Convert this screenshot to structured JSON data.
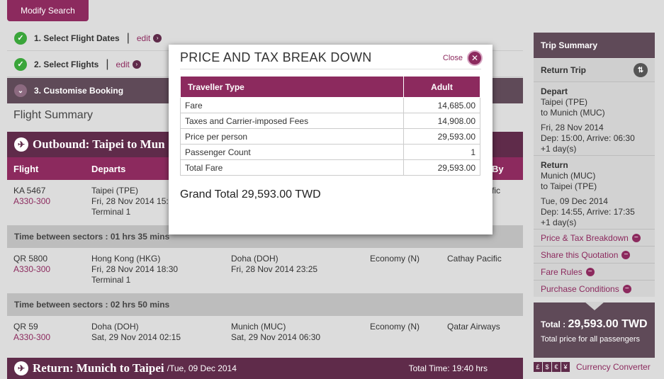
{
  "modify_search": "Modify Search",
  "steps": [
    {
      "label": "1. Select Flight Dates",
      "edit": "edit"
    },
    {
      "label": "2. Select Flights",
      "edit": "edit"
    },
    {
      "label": "3. Customise Booking"
    }
  ],
  "flight_summary_title": "Flight Summary",
  "outbound": {
    "title": "Outbound: Taipei  to Mun",
    "columns": {
      "flight": "Flight",
      "departs": "Departs",
      "by": "By"
    },
    "segments": [
      {
        "flight": "KA 5467",
        "aircraft": "A330-300",
        "dep_city": "Taipei (TPE)",
        "dep_time": "Fri, 28 Nov 2014 15:",
        "terminal": "Terminal 1",
        "arr_city": "",
        "arr_time": "",
        "cabin": "",
        "operator": "fic"
      },
      {
        "flight": "QR 5800",
        "aircraft": "A330-300",
        "dep_city": "Hong Kong (HKG)",
        "dep_time": "Fri, 28 Nov 2014 18:30",
        "terminal": "Terminal 1",
        "arr_city": "Doha (DOH)",
        "arr_time": "Fri, 28 Nov 2014 23:25",
        "cabin": "Economy (N)",
        "operator": "Cathay Pacific"
      },
      {
        "flight": "QR 59",
        "aircraft": "A330-300",
        "dep_city": "Doha (DOH)",
        "dep_time": "Sat, 29 Nov 2014 02:15",
        "terminal": "",
        "arr_city": "Munich (MUC)",
        "arr_time": "Sat, 29 Nov 2014 06:30",
        "cabin": "Economy (N)",
        "operator": "Qatar Airways"
      }
    ],
    "between": [
      "Time between sectors : 01 hrs 35 mins",
      "Time between sectors : 02 hrs 50 mins"
    ]
  },
  "return_bar": {
    "title": "Return: Munich  to Taipei",
    "date": "/Tue, 09 Dec 2014",
    "total_time": "Total Time: 19:40 hrs"
  },
  "sidebar": {
    "title": "Trip Summary",
    "sub": "Return Trip",
    "depart": {
      "h": "Depart",
      "l1": "Taipei (TPE)",
      "l2": "to Munich (MUC)",
      "l3": "Fri, 28 Nov 2014",
      "l4": "Dep: 15:00, Arrive: 06:30",
      "l5": "+1 day(s)"
    },
    "return": {
      "h": "Return",
      "l1": "Munich (MUC)",
      "l2": "to Taipei (TPE)",
      "l3": "Tue, 09 Dec 2014",
      "l4": "Dep: 14:55, Arrive: 17:35",
      "l5": "+1 day(s)"
    },
    "links": [
      "Price & Tax Breakdown",
      "Share this Quotation",
      "Fare Rules",
      "Purchase Conditions"
    ],
    "total_label": "Total : ",
    "total_amount": "29,593.00 TWD",
    "total_note": "Total price for all passengers"
  },
  "currency": {
    "symbols": [
      "£",
      "$",
      "€",
      "¥"
    ],
    "label": "Currency Converter"
  },
  "modal": {
    "title": "PRICE AND TAX BREAK DOWN",
    "close": "Close",
    "headers": [
      "Traveller Type",
      "Adult"
    ],
    "rows": [
      [
        "Fare",
        "14,685.00"
      ],
      [
        "Taxes and Carrier-imposed Fees",
        "14,908.00"
      ],
      [
        "Price per person",
        "29,593.00"
      ],
      [
        "Passenger Count",
        "1"
      ],
      [
        "Total Fare",
        "29,593.00"
      ]
    ],
    "grand_total": "Grand Total 29,593.00 TWD"
  },
  "colors": {
    "plum": "#5f2b4a",
    "magenta": "#8c2a5e",
    "check": "#3aa53a"
  }
}
